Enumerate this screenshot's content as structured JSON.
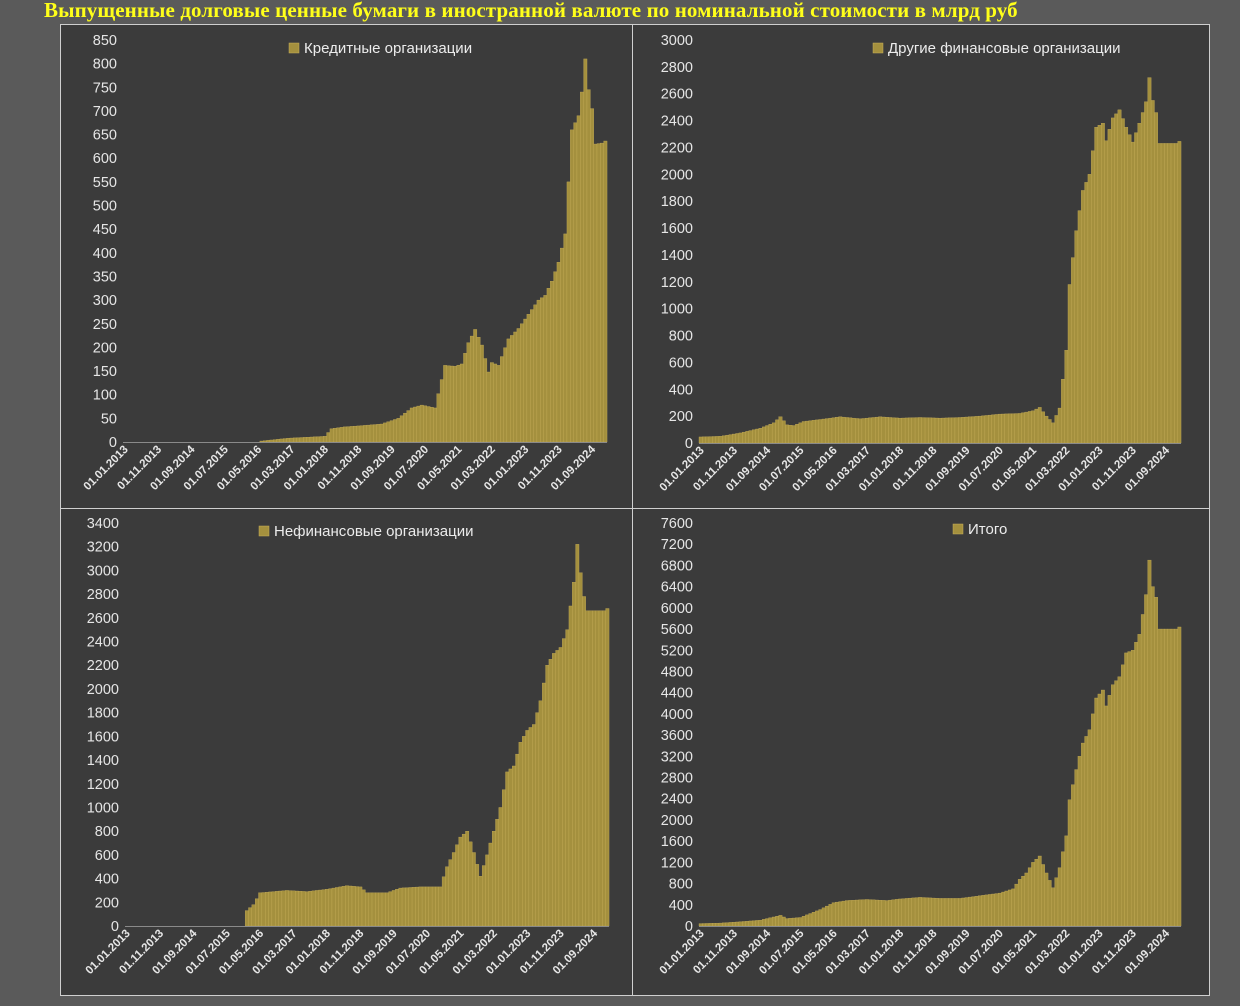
{
  "title": "Выпущенные долговые ценные бумаги в иностранной валюте по номинальной стоимости в млрд руб",
  "colors": {
    "bar": "#a4903e",
    "bar_edge": "#c9b05a",
    "background": "#5a5a5a",
    "plot_bg": "#3b3b3b",
    "text": "#e6e6e6",
    "title": "#ffff1a"
  },
  "chart_data": [
    {
      "type": "bar",
      "legend": "Кредитные организации",
      "legend_position": "top-center",
      "ylim": [
        0,
        850
      ],
      "yticks": [
        0,
        50,
        100,
        150,
        200,
        250,
        300,
        350,
        400,
        450,
        500,
        550,
        600,
        650,
        700,
        750,
        800,
        850
      ],
      "xticks": [
        "01.01.2013",
        "01.11.2013",
        "01.09.2014",
        "01.07.2015",
        "01.05.2016",
        "01.03.2017",
        "01.01.2018",
        "01.11.2018",
        "01.09.2019",
        "01.07.2020",
        "01.05.2021",
        "01.03.2022",
        "01.01.2023",
        "01.11.2023",
        "01.09.2024"
      ],
      "period": "monthly 01.01.2013 – 01.01.2025",
      "anchors": [
        [
          0,
          0
        ],
        [
          40,
          0
        ],
        [
          41,
          2
        ],
        [
          49,
          8
        ],
        [
          60,
          12
        ],
        [
          62,
          28
        ],
        [
          66,
          32
        ],
        [
          70,
          34
        ],
        [
          77,
          38
        ],
        [
          82,
          50
        ],
        [
          86,
          72
        ],
        [
          89,
          78
        ],
        [
          93,
          72
        ],
        [
          96,
          162
        ],
        [
          99,
          160
        ],
        [
          101,
          165
        ],
        [
          103,
          210
        ],
        [
          105,
          238
        ],
        [
          107,
          205
        ],
        [
          109,
          148
        ],
        [
          110,
          168
        ],
        [
          112,
          162
        ],
        [
          115,
          218
        ],
        [
          118,
          240
        ],
        [
          121,
          270
        ],
        [
          124,
          300
        ],
        [
          126,
          310
        ],
        [
          128,
          340
        ],
        [
          130,
          380
        ],
        [
          132,
          440
        ],
        [
          134,
          660
        ],
        [
          136,
          690
        ],
        [
          137,
          740
        ],
        [
          138,
          810
        ],
        [
          139,
          745
        ],
        [
          140,
          705
        ],
        [
          141,
          630
        ],
        [
          143,
          632
        ]
      ]
    },
    {
      "type": "bar",
      "legend": "Другие финансовые организации",
      "legend_position": "top-center",
      "ylim": [
        0,
        3000
      ],
      "yticks": [
        0,
        200,
        400,
        600,
        800,
        1000,
        1200,
        1400,
        1600,
        1800,
        2000,
        2200,
        2400,
        2600,
        2800,
        3000
      ],
      "xticks": [
        "01.01.2013",
        "01.11.2013",
        "01.09.2014",
        "01.07.2015",
        "01.05.2016",
        "01.03.2017",
        "01.01.2018",
        "01.11.2018",
        "01.09.2019",
        "01.07.2020",
        "01.05.2021",
        "01.03.2022",
        "01.01.2023",
        "01.11.2023",
        "01.09.2024"
      ],
      "period": "monthly 01.01.2013 – 01.01.2025",
      "anchors": [
        [
          0,
          45
        ],
        [
          6,
          50
        ],
        [
          12,
          75
        ],
        [
          18,
          110
        ],
        [
          22,
          150
        ],
        [
          24,
          195
        ],
        [
          26,
          135
        ],
        [
          28,
          130
        ],
        [
          31,
          160
        ],
        [
          36,
          175
        ],
        [
          42,
          195
        ],
        [
          48,
          180
        ],
        [
          54,
          195
        ],
        [
          60,
          185
        ],
        [
          66,
          190
        ],
        [
          72,
          185
        ],
        [
          78,
          190
        ],
        [
          84,
          200
        ],
        [
          90,
          215
        ],
        [
          96,
          220
        ],
        [
          100,
          240
        ],
        [
          102,
          265
        ],
        [
          104,
          200
        ],
        [
          106,
          150
        ],
        [
          108,
          260
        ],
        [
          110,
          690
        ],
        [
          111,
          1180
        ],
        [
          113,
          1580
        ],
        [
          115,
          1880
        ],
        [
          117,
          2000
        ],
        [
          119,
          2350
        ],
        [
          121,
          2380
        ],
        [
          122,
          2250
        ],
        [
          124,
          2420
        ],
        [
          126,
          2480
        ],
        [
          128,
          2350
        ],
        [
          130,
          2240
        ],
        [
          132,
          2380
        ],
        [
          134,
          2540
        ],
        [
          135,
          2720
        ],
        [
          136,
          2550
        ],
        [
          137,
          2460
        ],
        [
          138,
          2230
        ],
        [
          143,
          2230
        ]
      ]
    },
    {
      "type": "bar",
      "legend": "Нефинансовые организации",
      "legend_position": "top-center",
      "ylim": [
        0,
        3400
      ],
      "yticks": [
        0,
        200,
        400,
        600,
        800,
        1000,
        1200,
        1400,
        1600,
        1800,
        2000,
        2200,
        2400,
        2600,
        2800,
        3000,
        3200,
        3400
      ],
      "xticks": [
        "01.01.2013",
        "01.11.2013",
        "01.09.2014",
        "01.07.2015",
        "01.05.2016",
        "01.03.2017",
        "01.01.2018",
        "01.11.2018",
        "01.09.2019",
        "01.07.2020",
        "01.05.2021",
        "01.03.2022",
        "01.01.2023",
        "01.11.2023",
        "01.09.2024"
      ],
      "period": "monthly 01.01.2013 – 01.01.2025",
      "anchors": [
        [
          0,
          0
        ],
        [
          35,
          0
        ],
        [
          36,
          130
        ],
        [
          38,
          180
        ],
        [
          40,
          280
        ],
        [
          44,
          290
        ],
        [
          48,
          300
        ],
        [
          54,
          290
        ],
        [
          60,
          310
        ],
        [
          66,
          340
        ],
        [
          70,
          330
        ],
        [
          72,
          280
        ],
        [
          78,
          280
        ],
        [
          82,
          320
        ],
        [
          88,
          330
        ],
        [
          94,
          330
        ],
        [
          96,
          500
        ],
        [
          98,
          620
        ],
        [
          100,
          750
        ],
        [
          102,
          800
        ],
        [
          104,
          620
        ],
        [
          106,
          420
        ],
        [
          108,
          600
        ],
        [
          110,
          800
        ],
        [
          112,
          1000
        ],
        [
          114,
          1300
        ],
        [
          116,
          1350
        ],
        [
          118,
          1550
        ],
        [
          120,
          1650
        ],
        [
          122,
          1700
        ],
        [
          124,
          1900
        ],
        [
          126,
          2200
        ],
        [
          128,
          2300
        ],
        [
          130,
          2350
        ],
        [
          132,
          2500
        ],
        [
          134,
          2900
        ],
        [
          135,
          3220
        ],
        [
          136,
          2980
        ],
        [
          137,
          2780
        ],
        [
          138,
          2660
        ],
        [
          143,
          2660
        ]
      ]
    },
    {
      "type": "bar",
      "legend": "Итого",
      "legend_position": "top-center",
      "ylim": [
        0,
        7600
      ],
      "yticks": [
        0,
        400,
        800,
        1200,
        1600,
        2000,
        2400,
        2800,
        3200,
        3600,
        4000,
        4400,
        4800,
        5200,
        5600,
        6000,
        6400,
        6800,
        7200,
        7600
      ],
      "xticks": [
        "01.01.2013",
        "01.11.2013",
        "01.09.2014",
        "01.07.2015",
        "01.05.2016",
        "01.03.2017",
        "01.01.2018",
        "01.11.2018",
        "01.09.2019",
        "01.07.2020",
        "01.05.2021",
        "01.03.2022",
        "01.01.2023",
        "01.11.2023",
        "01.09.2024"
      ],
      "period": "monthly 01.01.2013 – 01.01.2025",
      "anchors": [
        [
          0,
          45
        ],
        [
          6,
          55
        ],
        [
          12,
          80
        ],
        [
          18,
          110
        ],
        [
          24,
          200
        ],
        [
          26,
          140
        ],
        [
          30,
          160
        ],
        [
          36,
          310
        ],
        [
          40,
          440
        ],
        [
          44,
          480
        ],
        [
          50,
          500
        ],
        [
          56,
          480
        ],
        [
          60,
          510
        ],
        [
          66,
          540
        ],
        [
          72,
          520
        ],
        [
          78,
          520
        ],
        [
          84,
          570
        ],
        [
          90,
          620
        ],
        [
          94,
          700
        ],
        [
          96,
          880
        ],
        [
          98,
          1000
        ],
        [
          100,
          1200
        ],
        [
          102,
          1320
        ],
        [
          104,
          1000
        ],
        [
          106,
          720
        ],
        [
          108,
          1100
        ],
        [
          110,
          1700
        ],
        [
          111,
          2380
        ],
        [
          113,
          2950
        ],
        [
          115,
          3450
        ],
        [
          117,
          3700
        ],
        [
          119,
          4300
        ],
        [
          121,
          4450
        ],
        [
          122,
          4150
        ],
        [
          124,
          4550
        ],
        [
          126,
          4700
        ],
        [
          128,
          5150
        ],
        [
          130,
          5200
        ],
        [
          132,
          5500
        ],
        [
          134,
          6250
        ],
        [
          135,
          6900
        ],
        [
          136,
          6400
        ],
        [
          137,
          6200
        ],
        [
          138,
          5600
        ],
        [
          143,
          5600
        ]
      ]
    }
  ]
}
